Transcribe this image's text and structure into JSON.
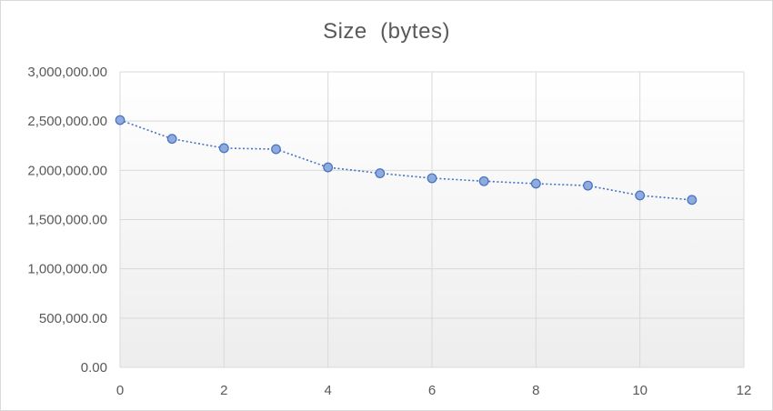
{
  "chart_data": {
    "type": "scatter",
    "title": "Size  (bytes)",
    "xlabel": "",
    "ylabel": "",
    "xlim": [
      0,
      12
    ],
    "ylim": [
      0,
      3000000
    ],
    "x_ticks": [
      0,
      2,
      4,
      6,
      8,
      10,
      12
    ],
    "x_tick_labels": [
      "0",
      "2",
      "4",
      "6",
      "8",
      "10",
      "12"
    ],
    "y_ticks": [
      0,
      500000,
      1000000,
      1500000,
      2000000,
      2500000,
      3000000
    ],
    "y_tick_labels": [
      "0.00",
      "500,000.00",
      "1,000,000.00",
      "1,500,000.00",
      "2,000,000.00",
      "2,500,000.00",
      "3,000,000.00"
    ],
    "grid": true,
    "legend": "none",
    "series": [
      {
        "x": [
          0,
          1,
          2,
          3,
          4,
          5,
          6,
          7,
          8,
          9,
          10,
          11
        ],
        "y": [
          2510000,
          2320000,
          2225000,
          2215000,
          2030000,
          1970000,
          1920000,
          1890000,
          1865000,
          1845000,
          1745000,
          1700000
        ],
        "color": "#4472c4",
        "marker_fill": "#8faadc",
        "line_style": "dotted"
      }
    ]
  }
}
